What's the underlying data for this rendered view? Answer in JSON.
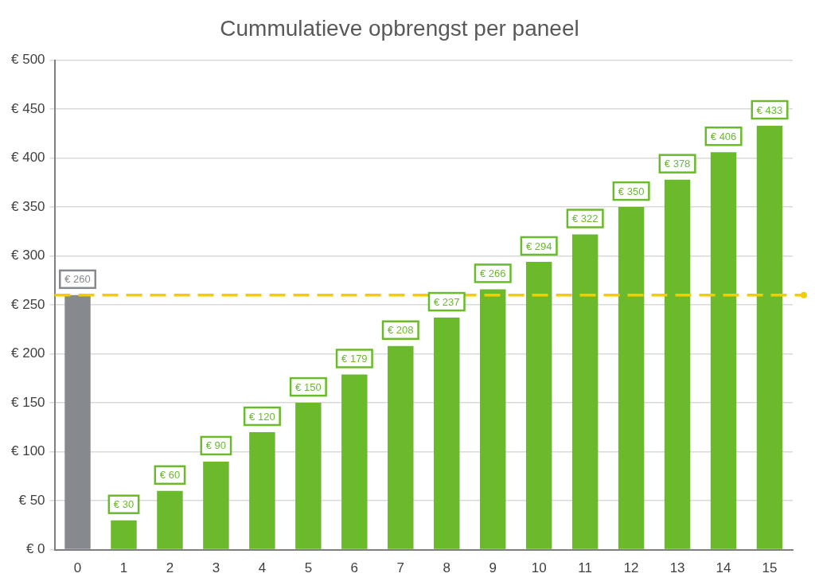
{
  "chart_data": {
    "type": "bar",
    "title": "Cummulatieve opbrengst per paneel",
    "categories": [
      "0",
      "1",
      "2",
      "3",
      "4",
      "5",
      "6",
      "7",
      "8",
      "9",
      "10",
      "11",
      "12",
      "13",
      "14",
      "15"
    ],
    "values": [
      260,
      30,
      60,
      90,
      120,
      150,
      179,
      208,
      237,
      266,
      294,
      322,
      350,
      378,
      406,
      433
    ],
    "value_labels": [
      "€ 260",
      "€ 30",
      "€ 60",
      "€ 90",
      "€ 120",
      "€ 150",
      "€ 179",
      "€ 208",
      "€ 237",
      "€ 266",
      "€ 294",
      "€ 322",
      "€ 350",
      "€ 378",
      "€ 406",
      "€ 433"
    ],
    "colors": [
      "#868a8f",
      "#6aba2c",
      "#6aba2c",
      "#6aba2c",
      "#6aba2c",
      "#6aba2c",
      "#6aba2c",
      "#6aba2c",
      "#6aba2c",
      "#6aba2c",
      "#6aba2c",
      "#6aba2c",
      "#6aba2c",
      "#6aba2c",
      "#6aba2c",
      "#6aba2c"
    ],
    "data_labels": true,
    "reference_line": {
      "value": 260,
      "color": "#f2cd00",
      "line_style": "dashed"
    },
    "ylim": [
      0,
      500
    ],
    "yticks": [
      {
        "value": 0,
        "label": "€ 0"
      },
      {
        "value": 50,
        "label": "€ 50"
      },
      {
        "value": 100,
        "label": "€ 100"
      },
      {
        "value": 150,
        "label": "€ 150"
      },
      {
        "value": 200,
        "label": "€ 200"
      },
      {
        "value": 250,
        "label": "€ 250"
      },
      {
        "value": 300,
        "label": "€ 300"
      },
      {
        "value": 350,
        "label": "€ 350"
      },
      {
        "value": 400,
        "label": "€ 400"
      },
      {
        "value": 450,
        "label": "€ 450"
      },
      {
        "value": 500,
        "label": "€ 500"
      }
    ],
    "grid": true
  }
}
